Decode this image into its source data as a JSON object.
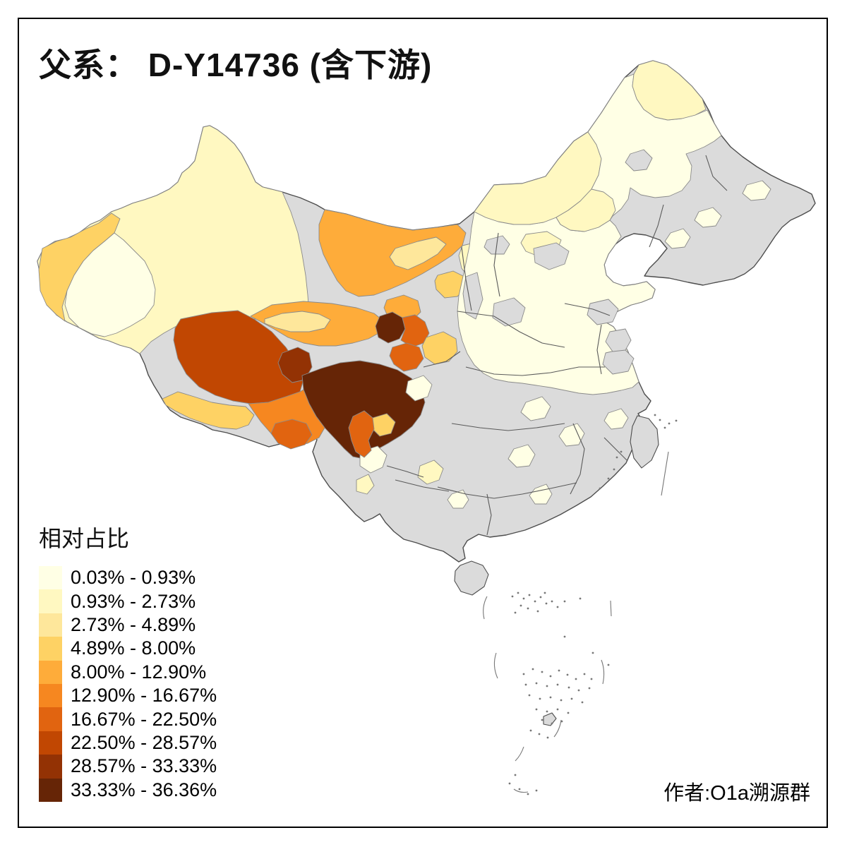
{
  "title": "父系： D-Y14736 (含下游)",
  "legend": {
    "title": "相对占比",
    "classes": [
      {
        "label": "0.03% - 0.93%",
        "color": "#FFFFE5"
      },
      {
        "label": "0.93% - 2.73%",
        "color": "#FFF8C1"
      },
      {
        "label": "2.73% - 4.89%",
        "color": "#FEE79B"
      },
      {
        "label": "4.89% - 8.00%",
        "color": "#FED264"
      },
      {
        "label": "8.00% - 12.90%",
        "color": "#FEAC3A"
      },
      {
        "label": "12.90% - 16.67%",
        "color": "#F68720"
      },
      {
        "label": "16.67% - 22.50%",
        "color": "#E16410"
      },
      {
        "label": "22.50% - 28.57%",
        "color": "#C14702"
      },
      {
        "label": "28.57% - 33.33%",
        "color": "#933204"
      },
      {
        "label": "33.33% - 36.36%",
        "color": "#662506"
      }
    ]
  },
  "attribution": "作者:O1a溯源群",
  "map": {
    "no_data_color": "#DBDBDB",
    "region_border_color": "#8A8A8A",
    "outline_color": "#4D4D4D",
    "frame_color": "#000000",
    "sea_color": "#FFFFFF"
  }
}
